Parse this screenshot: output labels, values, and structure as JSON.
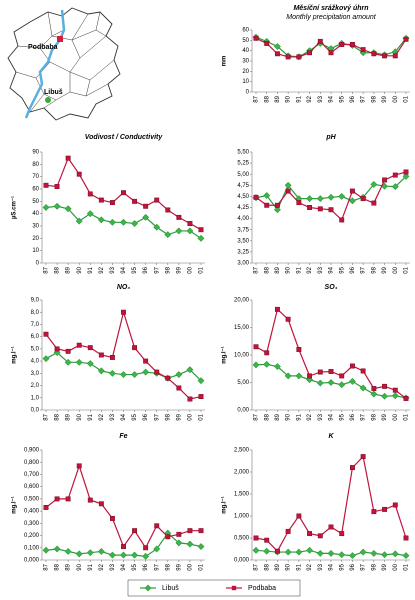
{
  "map": {
    "labels": [
      "Podbaba",
      "Libuš"
    ]
  },
  "chart_data": [
    {
      "type": "line",
      "title": "Měsíční srážkový úhrn",
      "subtitle": "Monthly precipitation amount",
      "ylabel": "mm",
      "categories": [
        "87",
        "88",
        "89",
        "90",
        "91",
        "92",
        "93",
        "94",
        "95",
        "96",
        "97",
        "98",
        "99",
        "00",
        "01"
      ],
      "series": [
        {
          "name": "Libuš",
          "color": "#2e9a3a",
          "marker": "diamond",
          "values": [
            53,
            49,
            44,
            35,
            34,
            40,
            47,
            42,
            47,
            45,
            38,
            38,
            36,
            39,
            52
          ]
        },
        {
          "name": "Podbaba",
          "color": "#c0143c",
          "marker": "square",
          "values": [
            52,
            47,
            37,
            34,
            34,
            38,
            49,
            38,
            46,
            46,
            41,
            37,
            35,
            35,
            51
          ]
        }
      ],
      "ylim": [
        0,
        60
      ],
      "yticks": [
        0,
        10,
        20,
        30,
        40,
        50,
        60
      ]
    },
    {
      "type": "line",
      "title": "Vodivost / Conductivity",
      "ylabel": "µS.cm⁻¹",
      "categories": [
        "87",
        "88",
        "89",
        "90",
        "91",
        "92",
        "93",
        "94",
        "95",
        "96",
        "97",
        "98",
        "99",
        "00",
        "01"
      ],
      "series": [
        {
          "name": "Libuš",
          "color": "#2e9a3a",
          "marker": "diamond",
          "values": [
            45,
            46,
            44,
            34,
            40,
            35,
            33,
            33,
            32,
            37,
            29,
            23,
            26,
            26,
            20
          ]
        },
        {
          "name": "Podbaba",
          "color": "#c0143c",
          "marker": "square",
          "values": [
            63,
            62,
            85,
            72,
            56,
            51,
            49,
            57,
            50,
            46,
            51,
            43,
            37,
            32,
            27
          ]
        }
      ],
      "ylim": [
        0,
        90
      ],
      "yticks": [
        0,
        10,
        20,
        30,
        40,
        50,
        60,
        70,
        80,
        90
      ]
    },
    {
      "type": "line",
      "title": "pH",
      "categories": [
        "87",
        "88",
        "89",
        "90",
        "91",
        "92",
        "93",
        "94",
        "95",
        "96",
        "97",
        "98",
        "99",
        "00",
        "01"
      ],
      "series": [
        {
          "name": "Libuš",
          "color": "#2e9a3a",
          "marker": "diamond",
          "values": [
            4.47,
            4.52,
            4.2,
            4.75,
            4.45,
            4.45,
            4.45,
            4.48,
            4.5,
            4.4,
            4.48,
            4.77,
            4.73,
            4.72,
            4.95
          ]
        },
        {
          "name": "Podbaba",
          "color": "#c0143c",
          "marker": "square",
          "values": [
            4.48,
            4.3,
            4.3,
            4.62,
            4.36,
            4.25,
            4.22,
            4.2,
            3.97,
            4.62,
            4.45,
            4.35,
            4.87,
            4.98,
            5.05
          ]
        }
      ],
      "ylim": [
        3,
        5.5
      ],
      "yticks": [
        {
          "value": 3,
          "label": "3,00"
        },
        {
          "value": 3.25,
          "label": "3,25"
        },
        {
          "value": 3.5,
          "label": "3,50"
        },
        {
          "value": 3.75,
          "label": "3,75"
        },
        {
          "value": 4,
          "label": "4,00"
        },
        {
          "value": 4.25,
          "label": "4,25"
        },
        {
          "value": 4.5,
          "label": "4,50"
        },
        {
          "value": 4.75,
          "label": "4,75"
        },
        {
          "value": 5,
          "label": "5,00"
        },
        {
          "value": 5.25,
          "label": "5,25"
        },
        {
          "value": 5.5,
          "label": "5,50"
        }
      ]
    },
    {
      "type": "line",
      "title": "NO₃",
      "ylabel": "mg.l⁻¹",
      "categories": [
        "87",
        "88",
        "89",
        "90",
        "91",
        "92",
        "93",
        "94",
        "95",
        "96",
        "97",
        "98",
        "99",
        "00",
        "01"
      ],
      "series": [
        {
          "name": "Libuš",
          "color": "#2e9a3a",
          "marker": "diamond",
          "values": [
            4.2,
            4.7,
            3.9,
            3.9,
            3.8,
            3.2,
            3.0,
            2.9,
            2.9,
            3.1,
            3.0,
            2.6,
            2.9,
            3.3,
            2.4
          ]
        },
        {
          "name": "Podbaba",
          "color": "#c0143c",
          "marker": "square",
          "values": [
            6.2,
            5.0,
            4.8,
            5.3,
            5.1,
            4.5,
            4.3,
            8.0,
            5.1,
            4.0,
            3.1,
            2.6,
            1.8,
            0.9,
            1.1
          ]
        }
      ],
      "ylim": [
        0,
        9
      ],
      "yticks": [
        {
          "value": 0,
          "label": "0,0"
        },
        {
          "value": 1,
          "label": "1,0"
        },
        {
          "value": 2,
          "label": "2,0"
        },
        {
          "value": 3,
          "label": "3,0"
        },
        {
          "value": 4,
          "label": "4,0"
        },
        {
          "value": 5,
          "label": "5,0"
        },
        {
          "value": 6,
          "label": "6,0"
        },
        {
          "value": 7,
          "label": "7,0"
        },
        {
          "value": 8,
          "label": "8,0"
        },
        {
          "value": 9,
          "label": "9,0"
        }
      ]
    },
    {
      "type": "line",
      "title": "SO₄",
      "ylabel": "mg.l⁻¹",
      "categories": [
        "87",
        "88",
        "89",
        "90",
        "91",
        "92",
        "93",
        "94",
        "95",
        "96",
        "97",
        "98",
        "99",
        "00",
        "01"
      ],
      "series": [
        {
          "name": "Libuš",
          "color": "#2e9a3a",
          "marker": "diamond",
          "values": [
            8.2,
            8.3,
            7.9,
            6.2,
            6.2,
            5.5,
            4.9,
            5.0,
            4.6,
            5.2,
            4.0,
            2.9,
            2.5,
            2.6,
            2.2
          ]
        },
        {
          "name": "Podbaba",
          "color": "#c0143c",
          "marker": "square",
          "values": [
            11.5,
            10.4,
            18.3,
            16.5,
            11.0,
            6.2,
            6.9,
            7.0,
            6.2,
            8.0,
            7.1,
            3.9,
            4.3,
            3.6,
            2.1
          ]
        }
      ],
      "ylim": [
        0,
        20
      ],
      "yticks": [
        {
          "value": 0,
          "label": "0,00"
        },
        {
          "value": 5,
          "label": "5,00"
        },
        {
          "value": 10,
          "label": "10,00"
        },
        {
          "value": 15,
          "label": "15,00"
        },
        {
          "value": 20,
          "label": "20,00"
        }
      ]
    },
    {
      "type": "line",
      "title": "Fe",
      "ylabel": "mg.l⁻¹",
      "categories": [
        "87",
        "88",
        "89",
        "90",
        "91",
        "92",
        "93",
        "94",
        "95",
        "96",
        "97",
        "98",
        "99",
        "00",
        "01"
      ],
      "series": [
        {
          "name": "Libuš",
          "color": "#2e9a3a",
          "marker": "diamond",
          "values": [
            0.08,
            0.09,
            0.07,
            0.05,
            0.06,
            0.07,
            0.04,
            0.04,
            0.04,
            0.03,
            0.09,
            0.22,
            0.14,
            0.13,
            0.11
          ]
        },
        {
          "name": "Podbaba",
          "color": "#c0143c",
          "marker": "square",
          "values": [
            0.43,
            0.5,
            0.5,
            0.77,
            0.49,
            0.46,
            0.34,
            0.11,
            0.24,
            0.1,
            0.28,
            0.19,
            0.21,
            0.24,
            0.24
          ]
        }
      ],
      "ylim": [
        0,
        0.9
      ],
      "yticks": [
        {
          "value": 0,
          "label": "0,000"
        },
        {
          "value": 0.1,
          "label": "0,100"
        },
        {
          "value": 0.2,
          "label": "0,200"
        },
        {
          "value": 0.3,
          "label": "0,300"
        },
        {
          "value": 0.4,
          "label": "0,400"
        },
        {
          "value": 0.5,
          "label": "0,500"
        },
        {
          "value": 0.6,
          "label": "0,600"
        },
        {
          "value": 0.7,
          "label": "0,700"
        },
        {
          "value": 0.8,
          "label": "0,800"
        },
        {
          "value": 0.9,
          "label": "0,900"
        }
      ]
    },
    {
      "type": "line",
      "title": "K",
      "ylabel": "mg.l⁻¹",
      "categories": [
        "87",
        "88",
        "89",
        "90",
        "91",
        "92",
        "93",
        "94",
        "95",
        "96",
        "97",
        "98",
        "99",
        "00",
        "01"
      ],
      "series": [
        {
          "name": "Libuš",
          "color": "#2e9a3a",
          "marker": "diamond",
          "values": [
            0.22,
            0.2,
            0.18,
            0.18,
            0.18,
            0.22,
            0.15,
            0.15,
            0.12,
            0.1,
            0.18,
            0.15,
            0.12,
            0.14,
            0.1
          ]
        },
        {
          "name": "Podbaba",
          "color": "#c0143c",
          "marker": "square",
          "values": [
            0.5,
            0.45,
            0.2,
            0.65,
            1.0,
            0.6,
            0.55,
            0.75,
            0.6,
            2.1,
            2.35,
            1.1,
            1.15,
            1.25,
            0.5
          ]
        }
      ],
      "ylim": [
        0,
        2.5
      ],
      "yticks": [
        {
          "value": 0,
          "label": "0,000"
        },
        {
          "value": 0.5,
          "label": "0,500"
        },
        {
          "value": 1,
          "label": "1,000"
        },
        {
          "value": 1.5,
          "label": "1,500"
        },
        {
          "value": 2,
          "label": "2,000"
        },
        {
          "value": 2.5,
          "label": "2,500"
        }
      ]
    }
  ]
}
